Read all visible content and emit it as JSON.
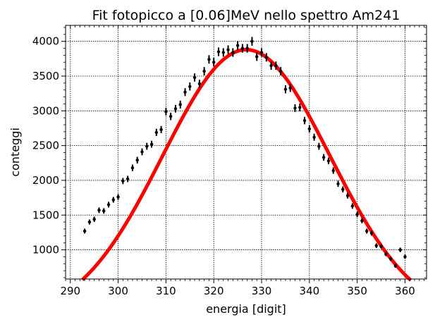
{
  "chart_data": {
    "type": "scatter",
    "title": "Fit fotopicco a [0.06]MeV nello spettro Am241",
    "xlabel": "energia [digit]",
    "ylabel": "conteggi",
    "xlim": [
      289,
      364.5
    ],
    "ylim": [
      580,
      4230
    ],
    "xticks": [
      290,
      300,
      310,
      320,
      330,
      340,
      350,
      360
    ],
    "yticks": [
      1000,
      1500,
      2000,
      2500,
      3000,
      3500,
      4000
    ],
    "grid": true,
    "series": [
      {
        "kind": "data_with_errorbars",
        "color": "#000000",
        "x": [
          293,
          294,
          295,
          296,
          297,
          298,
          299,
          300,
          301,
          302,
          303,
          304,
          305,
          306,
          307,
          308,
          309,
          310,
          311,
          312,
          313,
          314,
          315,
          316,
          317,
          318,
          319,
          320,
          321,
          322,
          323,
          324,
          325,
          326,
          327,
          328,
          329,
          330,
          331,
          332,
          333,
          334,
          335,
          336,
          337,
          338,
          339,
          340,
          341,
          342,
          343,
          344,
          345,
          346,
          347,
          348,
          349,
          350,
          351,
          352,
          353,
          354,
          355,
          356,
          357,
          358,
          359,
          360
        ],
        "y": [
          1270,
          1400,
          1440,
          1570,
          1560,
          1650,
          1720,
          1760,
          1990,
          2020,
          2180,
          2290,
          2410,
          2490,
          2520,
          2690,
          2730,
          2990,
          2920,
          3030,
          3090,
          3270,
          3350,
          3480,
          3390,
          3570,
          3740,
          3700,
          3850,
          3840,
          3880,
          3840,
          3940,
          3900,
          3900,
          4000,
          3780,
          3840,
          3770,
          3650,
          3650,
          3570,
          3310,
          3330,
          3040,
          3050,
          2860,
          2740,
          2620,
          2490,
          2330,
          2280,
          2140,
          1950,
          1870,
          1780,
          1630,
          1510,
          1420,
          1270,
          1240,
          1060,
          1050,
          940,
          870,
          770,
          1000,
          900
        ],
        "yerr": [
          35,
          37,
          38,
          40,
          40,
          41,
          41,
          42,
          45,
          45,
          47,
          48,
          49,
          50,
          50,
          52,
          52,
          55,
          54,
          55,
          56,
          57,
          58,
          59,
          58,
          60,
          61,
          61,
          62,
          62,
          62,
          62,
          63,
          62,
          62,
          63,
          61,
          62,
          61,
          60,
          60,
          60,
          58,
          58,
          55,
          55,
          53,
          52,
          51,
          50,
          48,
          48,
          46,
          44,
          43,
          42,
          40,
          39,
          38,
          36,
          35,
          33,
          32,
          31,
          30,
          28,
          32,
          30
        ]
      },
      {
        "kind": "fit_curve",
        "color": "#ff0000",
        "model": "gaussian",
        "amplitude": 3880,
        "mean": 326.8,
        "sigma": 17.5,
        "x_range": [
          292.5,
          361.2
        ]
      }
    ]
  }
}
